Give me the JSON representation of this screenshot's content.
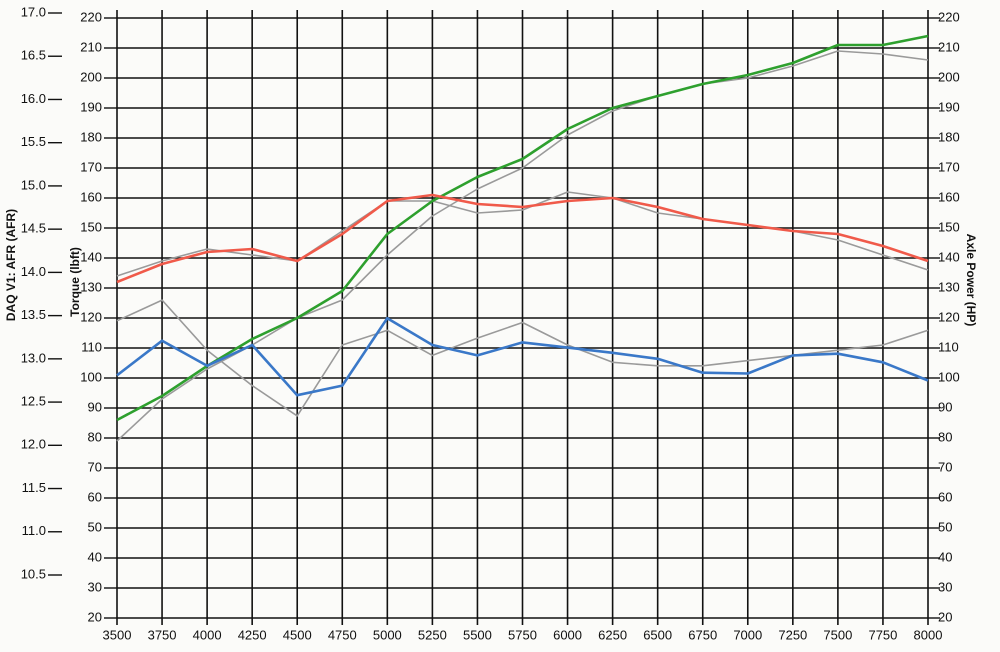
{
  "chart_data": {
    "type": "line",
    "ylabel": "Torque (lbft)",
    "y2label": "Axle Power (HP)",
    "y3label": "DAQ V1: AFR (AFR)",
    "x": [
      3500,
      3750,
      4000,
      4250,
      4500,
      4750,
      5000,
      5250,
      5500,
      5750,
      6000,
      6250,
      6500,
      6750,
      7000,
      7250,
      7500,
      7750,
      8000
    ],
    "xlim": [
      3500,
      8000
    ],
    "xticks": [
      3500,
      3750,
      4000,
      4250,
      4500,
      4750,
      5000,
      5250,
      5500,
      5750,
      6000,
      6250,
      6500,
      6750,
      7000,
      7250,
      7500,
      7750,
      8000
    ],
    "ylim": [
      20,
      220
    ],
    "yticks": [
      20,
      30,
      40,
      50,
      60,
      70,
      80,
      90,
      100,
      110,
      120,
      130,
      140,
      150,
      160,
      170,
      180,
      190,
      200,
      210,
      220
    ],
    "y2lim": [
      20,
      220
    ],
    "y2ticks": [
      20,
      30,
      40,
      50,
      60,
      70,
      80,
      90,
      100,
      110,
      120,
      130,
      140,
      150,
      160,
      170,
      180,
      190,
      200,
      210,
      220
    ],
    "y3lim": [
      10.5,
      17.0
    ],
    "y3ticks": [
      {
        "value": 10.5,
        "label": "10.5"
      },
      {
        "value": 11,
        "label": "11.0"
      },
      {
        "value": 11.5,
        "label": "11.5"
      },
      {
        "value": 12,
        "label": "12.0"
      },
      {
        "value": 12.5,
        "label": "12.5"
      },
      {
        "value": 13,
        "label": "13.0"
      },
      {
        "value": 13.5,
        "label": "13.5"
      },
      {
        "value": 14,
        "label": "14.0"
      },
      {
        "value": 14.5,
        "label": "14.5"
      },
      {
        "value": 15,
        "label": "15.0"
      },
      {
        "value": 15.5,
        "label": "15.5"
      },
      {
        "value": 16,
        "label": "16.0"
      },
      {
        "value": 16.5,
        "label": "16.5"
      },
      {
        "value": 17,
        "label": "17.0"
      }
    ],
    "grid": true,
    "series": [
      {
        "color": "#9a9a9a",
        "axis": "y2",
        "values": [
          79,
          93,
          103,
          111,
          120,
          126,
          141,
          154,
          163,
          170,
          181,
          189,
          194,
          198,
          200,
          204,
          209,
          208,
          206
        ]
      },
      {
        "color": "#9a9a9a",
        "axis": "y",
        "values": [
          134,
          139,
          143,
          141,
          139,
          149,
          159,
          159,
          155,
          156,
          162,
          160,
          155,
          153,
          151,
          149,
          146,
          141,
          136
        ]
      },
      {
        "color": "#9a9a9a",
        "axis": "y3",
        "values": [
          13.44,
          13.68,
          13.1,
          12.69,
          12.34,
          13.16,
          13.33,
          13.04,
          13.24,
          13.42,
          13.16,
          12.96,
          12.92,
          12.92,
          12.98,
          13.04,
          13.1,
          13.16,
          13.33
        ]
      },
      {
        "color": "#2ea02e",
        "axis": "y2",
        "values": [
          86,
          94,
          104,
          113,
          120,
          129,
          148,
          159,
          167,
          173,
          183,
          190,
          194,
          198,
          201,
          205,
          211,
          211,
          214
        ]
      },
      {
        "color": "#f05a4a",
        "axis": "y",
        "values": [
          132,
          138,
          142,
          143,
          139,
          148,
          159,
          161,
          158,
          157,
          159,
          160,
          157,
          153,
          151,
          149,
          148,
          144,
          139
        ]
      },
      {
        "color": "#3a78c8",
        "axis": "y3",
        "values": [
          12.81,
          13.21,
          12.92,
          13.16,
          12.58,
          12.69,
          13.47,
          13.16,
          13.04,
          13.19,
          13.13,
          13.07,
          13.0,
          12.84,
          12.83,
          13.04,
          13.06,
          12.96,
          12.75
        ]
      }
    ]
  }
}
